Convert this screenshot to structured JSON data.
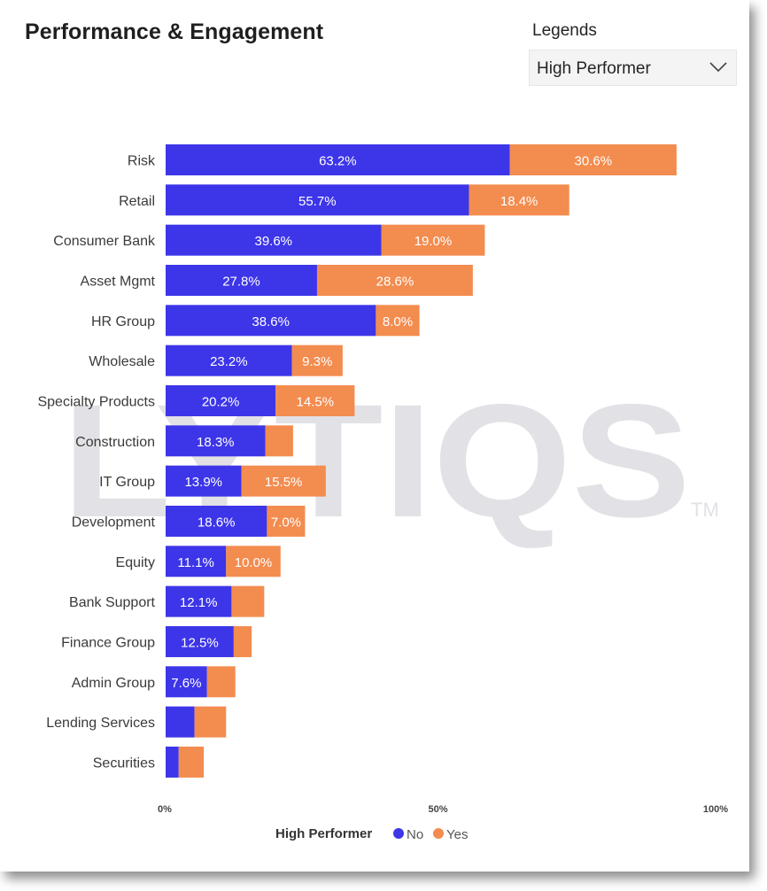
{
  "title": "Performance & Engagement",
  "legend_selector": {
    "caption": "Legends",
    "value": "High Performer",
    "icon": "chevron-down-icon"
  },
  "watermark": {
    "text": "LYTIQS",
    "mark": "TM"
  },
  "colors": {
    "No": "#3d35e8",
    "Yes": "#f38c4f"
  },
  "chart_data": {
    "type": "bar",
    "orientation": "horizontal",
    "stacked": true,
    "categories": [
      "Risk",
      "Retail",
      "Consumer Bank",
      "Asset Mgmt",
      "HR Group",
      "Wholesale",
      "Specialty Products",
      "Construction",
      "IT Group",
      "Development",
      "Equity",
      "Bank Support",
      "Finance Group",
      "Admin Group",
      "Lending Services",
      "Securities"
    ],
    "series": [
      {
        "name": "No",
        "values": [
          63.2,
          55.7,
          39.6,
          27.8,
          38.6,
          23.2,
          20.2,
          18.3,
          13.9,
          18.6,
          11.1,
          12.1,
          12.5,
          7.6,
          5.3,
          2.4
        ],
        "labels": [
          "63.2%",
          "55.7%",
          "39.6%",
          "27.8%",
          "38.6%",
          "23.2%",
          "20.2%",
          "18.3%",
          "13.9%",
          "18.6%",
          "11.1%",
          "12.1%",
          "12.5%",
          "7.6%",
          "",
          ""
        ]
      },
      {
        "name": "Yes",
        "values": [
          30.6,
          18.4,
          19.0,
          28.6,
          8.0,
          9.3,
          14.5,
          5.1,
          15.5,
          7.0,
          10.0,
          6.0,
          3.3,
          5.2,
          5.8,
          4.6
        ],
        "labels": [
          "30.6%",
          "18.4%",
          "19.0%",
          "28.6%",
          "8.0%",
          "9.3%",
          "14.5%",
          "",
          "15.5%",
          "7.0%",
          "10.0%",
          "",
          "",
          "",
          "",
          ""
        ]
      }
    ],
    "xlim": [
      0,
      100
    ],
    "x_ticks": [
      0,
      50,
      100
    ],
    "x_tick_labels": [
      "0%",
      "50%",
      "100%"
    ],
    "legend": {
      "title": "High Performer",
      "entries": [
        "No",
        "Yes"
      ],
      "position": "bottom"
    },
    "grid": false
  }
}
